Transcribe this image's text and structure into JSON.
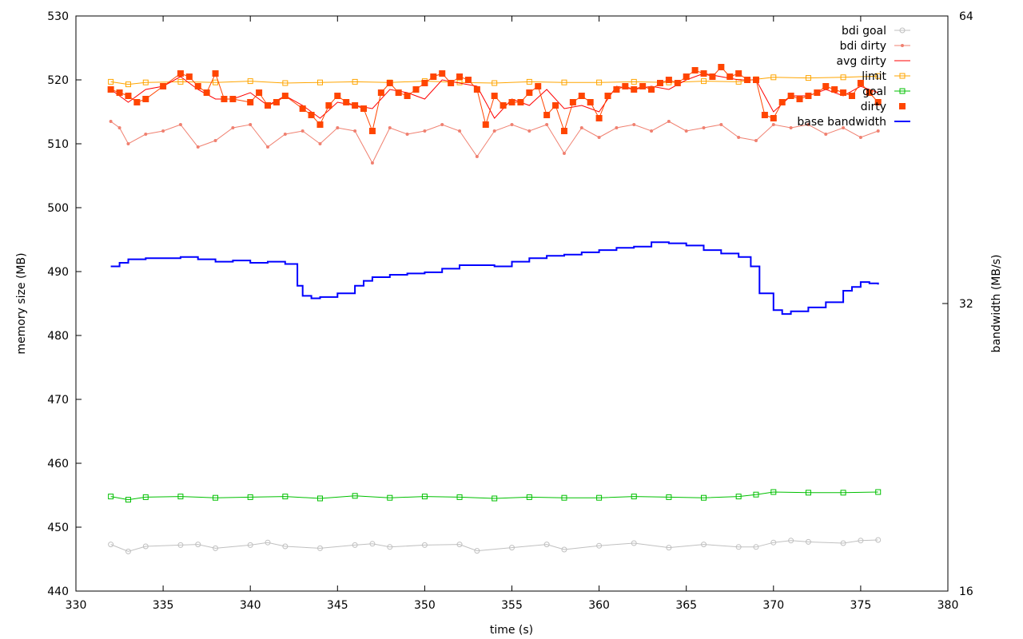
{
  "chart_data": {
    "type": "line",
    "title": "",
    "xlabel": "time (s)",
    "ylabel": "memory size (MB)",
    "y2label": "bandwidth (MB/s)",
    "xlim": [
      330,
      380
    ],
    "ylim": [
      440,
      530
    ],
    "y2lim": [
      16,
      64
    ],
    "y2scale": "log2",
    "x_ticks": [
      330,
      335,
      340,
      345,
      350,
      355,
      360,
      365,
      370,
      375,
      380
    ],
    "y_ticks": [
      440,
      450,
      460,
      470,
      480,
      490,
      500,
      510,
      520,
      530
    ],
    "y2_ticks": [
      16,
      32,
      64
    ],
    "grid": false,
    "legend_position": "top-right",
    "colors": {
      "bdi_goal": "#c0c0c0",
      "bdi_dirty": "#f08070",
      "avg_dirty": "#ff0000",
      "limit": "#ffa500",
      "goal": "#00c000",
      "dirty": "#ff4500",
      "base_bandwidth": "#0000ff"
    },
    "series": [
      {
        "name": "bdi goal",
        "marker": "circle",
        "axis": "y1",
        "x": [
          332,
          333,
          334,
          336,
          337,
          338,
          340,
          341,
          342,
          344,
          346,
          347,
          348,
          350,
          352,
          353,
          355,
          357,
          358,
          360,
          362,
          364,
          366,
          368,
          369,
          370,
          371,
          372,
          374,
          375,
          376
        ],
        "values": [
          447.3,
          446.2,
          447.0,
          447.2,
          447.3,
          446.7,
          447.2,
          447.6,
          447.0,
          446.7,
          447.2,
          447.4,
          446.9,
          447.2,
          447.3,
          446.3,
          446.8,
          447.3,
          446.5,
          447.1,
          447.5,
          446.8,
          447.3,
          446.9,
          446.9,
          447.6,
          447.9,
          447.7,
          447.5,
          447.9,
          448.0
        ]
      },
      {
        "name": "bdi dirty",
        "marker": "dot",
        "axis": "y1",
        "x": [
          332,
          332.5,
          333,
          334,
          335,
          336,
          337,
          338,
          339,
          340,
          341,
          342,
          343,
          344,
          345,
          346,
          347,
          348,
          349,
          350,
          351,
          352,
          353,
          354,
          355,
          356,
          357,
          358,
          359,
          360,
          361,
          362,
          363,
          364,
          365,
          366,
          367,
          368,
          369,
          370,
          371,
          372,
          373,
          374,
          375,
          376
        ],
        "values": [
          513.5,
          512.5,
          510.0,
          511.5,
          512.0,
          513.0,
          509.5,
          510.5,
          512.5,
          513.0,
          509.5,
          511.5,
          512.0,
          510.0,
          512.5,
          512.0,
          507.0,
          512.5,
          511.5,
          512.0,
          513.0,
          512.0,
          508.0,
          512.0,
          513.0,
          512.0,
          513.0,
          508.5,
          512.5,
          511.0,
          512.5,
          513.0,
          512.0,
          513.5,
          512.0,
          512.5,
          513.0,
          511.0,
          510.5,
          513.0,
          512.5,
          513.0,
          511.5,
          512.5,
          511.0,
          512.0
        ]
      },
      {
        "name": "avg dirty",
        "marker": "none",
        "axis": "y1",
        "x": [
          332,
          333,
          334,
          335,
          336,
          337,
          338,
          339,
          340,
          341,
          342,
          343,
          344,
          345,
          346,
          347,
          348,
          349,
          350,
          351,
          352,
          353,
          354,
          355,
          356,
          357,
          358,
          359,
          360,
          361,
          362,
          363,
          364,
          365,
          366,
          367,
          368,
          369,
          370,
          371,
          372,
          373,
          374,
          375,
          376
        ],
        "values": [
          518.5,
          516.5,
          518.5,
          519.0,
          520.5,
          518.5,
          517.0,
          517.0,
          518.0,
          516.0,
          517.5,
          516.0,
          514.0,
          516.5,
          516.0,
          515.5,
          518.5,
          518.0,
          517.0,
          520.0,
          519.5,
          519.0,
          514.0,
          517.0,
          516.0,
          518.5,
          515.5,
          516.0,
          515.0,
          519.0,
          518.5,
          519.0,
          518.5,
          520.0,
          521.0,
          520.5,
          520.0,
          520.0,
          515.0,
          517.5,
          517.5,
          518.5,
          517.5,
          519.0,
          518.0
        ]
      },
      {
        "name": "limit",
        "marker": "square",
        "axis": "y1",
        "x": [
          332,
          333,
          334,
          336,
          338,
          340,
          342,
          344,
          346,
          348,
          350,
          352,
          354,
          356,
          358,
          360,
          362,
          364,
          366,
          368,
          369,
          370,
          372,
          374,
          376
        ],
        "values": [
          519.7,
          519.3,
          519.6,
          519.7,
          519.6,
          519.8,
          519.5,
          519.6,
          519.7,
          519.6,
          519.8,
          519.6,
          519.5,
          519.7,
          519.6,
          519.6,
          519.7,
          519.6,
          519.8,
          519.7,
          520.1,
          520.4,
          520.3,
          520.4,
          520.6
        ]
      },
      {
        "name": "goal",
        "marker": "square",
        "axis": "y1",
        "x": [
          332,
          333,
          334,
          336,
          338,
          340,
          342,
          344,
          346,
          348,
          350,
          352,
          354,
          356,
          358,
          360,
          362,
          364,
          366,
          368,
          369,
          370,
          372,
          374,
          376
        ],
        "values": [
          454.8,
          454.3,
          454.7,
          454.8,
          454.6,
          454.7,
          454.8,
          454.5,
          454.9,
          454.6,
          454.8,
          454.7,
          454.5,
          454.7,
          454.6,
          454.6,
          454.8,
          454.7,
          454.6,
          454.8,
          455.1,
          455.5,
          455.4,
          455.4,
          455.5
        ]
      },
      {
        "name": "dirty",
        "marker": "filled-square",
        "axis": "y1",
        "x": [
          332,
          332.5,
          333,
          333.5,
          334,
          335,
          336,
          336.5,
          337,
          337.5,
          338,
          338.5,
          339,
          340,
          340.5,
          341,
          341.5,
          342,
          343,
          343.5,
          344,
          344.5,
          345,
          345.5,
          346,
          346.5,
          347,
          347.5,
          348,
          348.5,
          349,
          349.5,
          350,
          350.5,
          351,
          351.5,
          352,
          352.5,
          353,
          353.5,
          354,
          354.5,
          355,
          355.5,
          356,
          356.5,
          357,
          357.5,
          358,
          358.5,
          359,
          359.5,
          360,
          360.5,
          361,
          361.5,
          362,
          362.5,
          363,
          363.5,
          364,
          364.5,
          365,
          365.5,
          366,
          366.5,
          367,
          367.5,
          368,
          368.5,
          369,
          369.5,
          370,
          370.5,
          371,
          371.5,
          372,
          372.5,
          373,
          373.5,
          374,
          374.5,
          375,
          375.5,
          376
        ],
        "values": [
          518.5,
          518.0,
          517.5,
          516.5,
          517.0,
          519.0,
          521.0,
          520.5,
          519.0,
          518.0,
          521.0,
          517.0,
          517.0,
          516.5,
          518.0,
          516.0,
          516.5,
          517.5,
          515.5,
          514.5,
          513.0,
          516.0,
          517.5,
          516.5,
          516.0,
          515.5,
          512.0,
          518.0,
          519.5,
          518.0,
          517.5,
          518.5,
          519.5,
          520.5,
          521.0,
          519.5,
          520.5,
          520.0,
          518.5,
          513.0,
          517.5,
          516.0,
          516.5,
          516.5,
          518.0,
          519.0,
          514.5,
          516.0,
          512.0,
          516.5,
          517.5,
          516.5,
          514.0,
          517.5,
          518.5,
          519.0,
          518.5,
          519.0,
          518.5,
          519.5,
          520.0,
          519.5,
          520.5,
          521.5,
          521.0,
          520.5,
          522.0,
          520.5,
          521.0,
          520.0,
          520.0,
          514.5,
          514.0,
          516.5,
          517.5,
          517.0,
          517.5,
          518.0,
          519.0,
          518.5,
          518.0,
          517.5,
          519.5,
          518.0,
          516.5
        ]
      },
      {
        "name": "base bandwidth",
        "marker": "none",
        "axis": "y2",
        "step": true,
        "x": [
          332,
          332.5,
          333,
          334,
          335,
          336,
          337,
          338,
          339,
          340,
          341,
          342,
          342.7,
          343,
          343.5,
          344,
          345,
          346,
          346.5,
          347,
          348,
          349,
          350,
          351,
          352,
          353,
          354,
          355,
          356,
          357,
          358,
          359,
          360,
          361,
          362,
          363,
          364,
          365,
          366,
          367,
          368,
          368.7,
          369.2,
          370,
          370.5,
          371,
          372,
          373,
          374,
          374.5,
          375,
          375.5,
          376
        ],
        "values": [
          35.0,
          35.3,
          35.6,
          35.7,
          35.7,
          35.8,
          35.6,
          35.4,
          35.5,
          35.3,
          35.4,
          35.2,
          33.4,
          32.6,
          32.4,
          32.5,
          32.8,
          33.4,
          33.8,
          34.1,
          34.3,
          34.4,
          34.5,
          34.8,
          35.1,
          35.1,
          35.0,
          35.4,
          35.7,
          35.9,
          36.0,
          36.2,
          36.4,
          36.6,
          36.7,
          37.1,
          37.0,
          36.8,
          36.4,
          36.1,
          35.8,
          35.0,
          32.8,
          31.5,
          31.2,
          31.4,
          31.7,
          32.1,
          33.0,
          33.3,
          33.7,
          33.6,
          33.5
        ]
      }
    ]
  }
}
